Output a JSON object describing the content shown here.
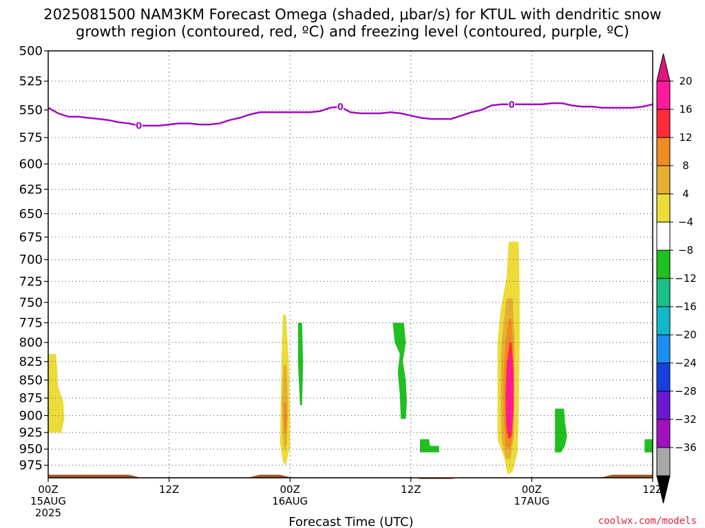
{
  "chart_data": {
    "type": "heatmap",
    "title_lines": [
      "2025081500 NAM3KM Forecast Omega (shaded, μbar/s) for KTUL with dendritic snow",
      "growth region (contoured, red, ºC) and freezing level (contoured, purple, ºC)"
    ],
    "xlabel": "Forecast Time (UTC)",
    "xlim": [
      0,
      60
    ],
    "x_ticks": [
      {
        "hour": 0,
        "lines": [
          "00Z",
          "15AUG",
          "2025"
        ]
      },
      {
        "hour": 12,
        "lines": [
          "12Z"
        ]
      },
      {
        "hour": 24,
        "lines": [
          "00Z",
          "16AUG"
        ]
      },
      {
        "hour": 36,
        "lines": [
          "12Z"
        ]
      },
      {
        "hour": 48,
        "lines": [
          "00Z",
          "17AUG"
        ]
      },
      {
        "hour": 60,
        "lines": [
          "12Z"
        ]
      }
    ],
    "y_scale": "log-pressure (inverted)",
    "ylim": [
      995,
      500
    ],
    "y_ticks": [
      500,
      525,
      550,
      575,
      600,
      625,
      650,
      675,
      700,
      725,
      750,
      775,
      800,
      825,
      850,
      875,
      900,
      925,
      950,
      975
    ],
    "grid": true,
    "colorbar": {
      "labels": [
        "20",
        "16",
        "12",
        "8",
        "4",
        "−4",
        "−8",
        "−12",
        "−16",
        "−20",
        "−24",
        "−28",
        "−32",
        "−36"
      ],
      "colors": [
        "#ff1a9c",
        "#ff2a3a",
        "#f08a22",
        "#e4b030",
        "#ecdc3a",
        "#ffffff",
        "#20c020",
        "#18c08a",
        "#10b8c8",
        "#1b8ef0",
        "#1840e0",
        "#6a18d6",
        "#a010c0",
        "#a8a8a8"
      ],
      "top_arrow_color": "#e0157c",
      "bottom_arrow_color": "#000000"
    },
    "freezing_level": {
      "color": "#9e0bbf",
      "label": "0",
      "label_points": [
        [
          9,
          564
        ],
        [
          29,
          547
        ],
        [
          46,
          545
        ]
      ],
      "points": [
        [
          0,
          548
        ],
        [
          1,
          553
        ],
        [
          2,
          556
        ],
        [
          3,
          556
        ],
        [
          4,
          557
        ],
        [
          5,
          558
        ],
        [
          6,
          559
        ],
        [
          7,
          561
        ],
        [
          8,
          562
        ],
        [
          9,
          564
        ],
        [
          10,
          564
        ],
        [
          11,
          564
        ],
        [
          12,
          563
        ],
        [
          13,
          562
        ],
        [
          14,
          562
        ],
        [
          15,
          563
        ],
        [
          16,
          563
        ],
        [
          17,
          562
        ],
        [
          18,
          559
        ],
        [
          19,
          557
        ],
        [
          20,
          554
        ],
        [
          21,
          552
        ],
        [
          22,
          552
        ],
        [
          23,
          552
        ],
        [
          24,
          552
        ],
        [
          25,
          552
        ],
        [
          26,
          552
        ],
        [
          27,
          551
        ],
        [
          28,
          548
        ],
        [
          29,
          547
        ],
        [
          30,
          552
        ],
        [
          31,
          553
        ],
        [
          32,
          553
        ],
        [
          33,
          553
        ],
        [
          34,
          552
        ],
        [
          35,
          553
        ],
        [
          36,
          555
        ],
        [
          37,
          557
        ],
        [
          38,
          558
        ],
        [
          39,
          558
        ],
        [
          40,
          558
        ],
        [
          41,
          555
        ],
        [
          42,
          552
        ],
        [
          43,
          550
        ],
        [
          44,
          546
        ],
        [
          45,
          545
        ],
        [
          46,
          545
        ],
        [
          47,
          545
        ],
        [
          48,
          545
        ],
        [
          49,
          545
        ],
        [
          50,
          544
        ],
        [
          51,
          544
        ],
        [
          52,
          546
        ],
        [
          53,
          547
        ],
        [
          54,
          547
        ],
        [
          55,
          548
        ],
        [
          56,
          548
        ],
        [
          57,
          548
        ],
        [
          58,
          548
        ],
        [
          59,
          547
        ],
        [
          60,
          545
        ]
      ]
    },
    "omega_regions": [
      {
        "color": "#ecdc3a",
        "points": [
          [
            0,
            815
          ],
          [
            0.8,
            815
          ],
          [
            1.0,
            860
          ],
          [
            1.5,
            880
          ],
          [
            1.6,
            905
          ],
          [
            1.3,
            925
          ],
          [
            0,
            925
          ]
        ]
      },
      {
        "color": "#ecdc3a",
        "points": [
          [
            23.3,
            765
          ],
          [
            23.6,
            765
          ],
          [
            23.9,
            830
          ],
          [
            24.0,
            900
          ],
          [
            24.0,
            945
          ],
          [
            23.6,
            975
          ],
          [
            23.3,
            970
          ],
          [
            23.0,
            940
          ],
          [
            23.1,
            870
          ],
          [
            23.2,
            800
          ]
        ]
      },
      {
        "color": "#e4b030",
        "points": [
          [
            23.35,
            830
          ],
          [
            23.65,
            830
          ],
          [
            23.8,
            890
          ],
          [
            23.7,
            940
          ],
          [
            23.45,
            955
          ],
          [
            23.3,
            935
          ],
          [
            23.2,
            885
          ]
        ]
      },
      {
        "color": "#f08a22",
        "points": [
          [
            23.4,
            880
          ],
          [
            23.6,
            880
          ],
          [
            23.7,
            905
          ],
          [
            23.6,
            925
          ],
          [
            23.45,
            925
          ],
          [
            23.35,
            905
          ]
        ]
      },
      {
        "color": "#20c020",
        "points": [
          [
            24.8,
            775
          ],
          [
            25.2,
            775
          ],
          [
            25.3,
            830
          ],
          [
            25.2,
            885
          ],
          [
            25.0,
            885
          ],
          [
            24.8,
            830
          ]
        ]
      },
      {
        "color": "#20c020",
        "points": [
          [
            34.2,
            775
          ],
          [
            35.3,
            775
          ],
          [
            35.5,
            800
          ],
          [
            35.2,
            825
          ],
          [
            35.5,
            850
          ],
          [
            35.6,
            880
          ],
          [
            35.5,
            905
          ],
          [
            35.0,
            905
          ],
          [
            34.9,
            870
          ],
          [
            34.7,
            840
          ],
          [
            34.9,
            815
          ],
          [
            34.4,
            800
          ]
        ]
      },
      {
        "color": "#20c020",
        "points": [
          [
            36.9,
            935
          ],
          [
            37.8,
            935
          ],
          [
            37.9,
            945
          ],
          [
            38.8,
            945
          ],
          [
            38.8,
            955
          ],
          [
            36.9,
            955
          ]
        ]
      },
      {
        "color": "#ecdc3a",
        "points": [
          [
            45.7,
            680
          ],
          [
            46.7,
            680
          ],
          [
            46.8,
            735
          ],
          [
            46.8,
            810
          ],
          [
            46.7,
            900
          ],
          [
            46.6,
            955
          ],
          [
            46.1,
            985
          ],
          [
            45.6,
            990
          ],
          [
            45.3,
            965
          ],
          [
            44.6,
            935
          ],
          [
            44.6,
            860
          ],
          [
            44.6,
            800
          ],
          [
            44.9,
            760
          ],
          [
            45.5,
            720
          ]
        ]
      },
      {
        "color": "#e4b030",
        "points": [
          [
            45.5,
            745
          ],
          [
            46.1,
            745
          ],
          [
            46.3,
            800
          ],
          [
            46.3,
            870
          ],
          [
            46.2,
            930
          ],
          [
            45.9,
            965
          ],
          [
            45.4,
            965
          ],
          [
            45.0,
            935
          ],
          [
            44.9,
            870
          ],
          [
            45.0,
            800
          ]
        ]
      },
      {
        "color": "#f08a22",
        "points": [
          [
            45.7,
            770
          ],
          [
            46.0,
            770
          ],
          [
            46.2,
            820
          ],
          [
            46.2,
            880
          ],
          [
            46.1,
            935
          ],
          [
            45.8,
            950
          ],
          [
            45.4,
            945
          ],
          [
            45.2,
            900
          ],
          [
            45.2,
            840
          ],
          [
            45.4,
            800
          ]
        ]
      },
      {
        "color": "#ff2a3a",
        "points": [
          [
            45.8,
            800
          ],
          [
            46.0,
            800
          ],
          [
            46.2,
            840
          ],
          [
            46.2,
            890
          ],
          [
            46.0,
            930
          ],
          [
            45.7,
            935
          ],
          [
            45.45,
            915
          ],
          [
            45.4,
            870
          ],
          [
            45.5,
            830
          ]
        ]
      },
      {
        "color": "#ff1a9c",
        "points": [
          [
            45.8,
            815
          ],
          [
            46.0,
            815
          ],
          [
            46.2,
            850
          ],
          [
            46.15,
            900
          ],
          [
            46.0,
            925
          ],
          [
            45.7,
            925
          ],
          [
            45.5,
            900
          ],
          [
            45.5,
            860
          ],
          [
            45.6,
            830
          ]
        ]
      },
      {
        "color": "#20c020",
        "points": [
          [
            50.3,
            890
          ],
          [
            51.2,
            890
          ],
          [
            51.3,
            910
          ],
          [
            51.5,
            930
          ],
          [
            51.3,
            945
          ],
          [
            50.9,
            955
          ],
          [
            50.3,
            955
          ]
        ]
      },
      {
        "color": "#20c020",
        "points": [
          [
            59.2,
            935
          ],
          [
            60,
            935
          ],
          [
            60,
            955
          ],
          [
            59.2,
            955
          ]
        ]
      }
    ],
    "terrain": {
      "color": "#a0552a",
      "top": [
        [
          0,
          990
        ],
        [
          8,
          990
        ],
        [
          9,
          994
        ],
        [
          20,
          994
        ],
        [
          21,
          990
        ],
        [
          23,
          990
        ],
        [
          24,
          994
        ],
        [
          36,
          994
        ],
        [
          37,
          997
        ],
        [
          40,
          997
        ],
        [
          41,
          994
        ],
        [
          55,
          994
        ],
        [
          56,
          990
        ],
        [
          60,
          990
        ]
      ]
    }
  },
  "credit": {
    "text": "coolwx.com/models",
    "color": "#e0203c"
  }
}
